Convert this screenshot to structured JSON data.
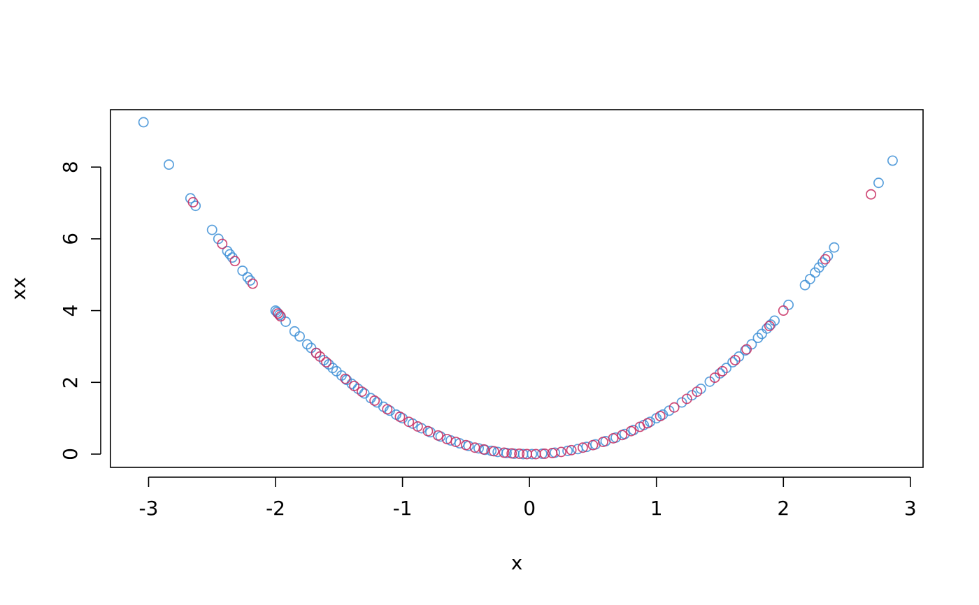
{
  "chart_data": {
    "type": "scatter",
    "title": "",
    "xlabel": "x",
    "ylabel": "xx",
    "xlim": [
      -3.3,
      3.1
    ],
    "ylim": [
      -0.37,
      9.6
    ],
    "xticks": [
      "-3",
      "-2",
      "-1",
      "0",
      "1",
      "2",
      "3"
    ],
    "yticks": [
      "0",
      "2",
      "4",
      "6",
      "8"
    ],
    "grid": false,
    "legend": "none",
    "colors": {
      "blue": "#3d8fd6",
      "red": "#c72a5f",
      "axis": "#000000"
    },
    "series": [
      {
        "color": "#3d8fd6",
        "x": [
          -3.04,
          -2.84,
          -2.67,
          -2.63,
          -2.5,
          -2.45,
          -2.38,
          -2.36,
          -2.34,
          -2.26,
          -2.22,
          -2.2,
          -2.0,
          -1.99,
          -1.97,
          -1.92,
          -1.85,
          -1.81,
          -1.75,
          -1.72,
          -1.68,
          -1.62,
          -1.58,
          -1.55,
          -1.52,
          -1.48,
          -1.44,
          -1.4,
          -1.35,
          -1.3,
          -1.25,
          -1.2,
          -1.15,
          -1.1,
          -1.05,
          -1.0,
          -0.92,
          -0.85,
          -0.78,
          -0.7,
          -0.62,
          -0.55,
          -0.48,
          -0.4,
          -0.35,
          -0.3,
          -0.25,
          -0.18,
          -0.12,
          -0.05,
          0.02,
          0.1,
          0.2,
          0.3,
          0.38,
          0.45,
          0.52,
          0.6,
          0.68,
          0.75,
          0.82,
          0.9,
          0.95,
          1.0,
          1.05,
          1.1,
          1.2,
          1.28,
          1.35,
          1.42,
          1.5,
          1.55,
          1.6,
          1.65,
          1.7,
          1.75,
          1.8,
          1.83,
          1.87,
          1.9,
          1.93,
          2.04,
          2.17,
          2.21,
          2.25,
          2.28,
          2.31,
          2.35,
          2.4,
          2.75,
          2.86
        ],
        "y": [
          9.25,
          8.07,
          7.13,
          6.92,
          6.25,
          6.0,
          5.66,
          5.57,
          5.48,
          5.11,
          4.93,
          4.84,
          4.0,
          3.96,
          3.88,
          3.69,
          3.42,
          3.28,
          3.06,
          2.96,
          2.82,
          2.62,
          2.5,
          2.4,
          2.31,
          2.19,
          2.07,
          1.96,
          1.82,
          1.69,
          1.56,
          1.44,
          1.32,
          1.21,
          1.1,
          1.0,
          0.85,
          0.72,
          0.61,
          0.49,
          0.38,
          0.3,
          0.23,
          0.16,
          0.12,
          0.09,
          0.06,
          0.03,
          0.01,
          0.0,
          0.0,
          0.01,
          0.04,
          0.09,
          0.14,
          0.2,
          0.27,
          0.36,
          0.46,
          0.56,
          0.67,
          0.81,
          0.9,
          1.0,
          1.1,
          1.21,
          1.44,
          1.64,
          1.82,
          2.02,
          2.25,
          2.4,
          2.56,
          2.72,
          2.89,
          3.06,
          3.24,
          3.35,
          3.5,
          3.61,
          3.72,
          4.16,
          4.71,
          4.88,
          5.06,
          5.2,
          5.34,
          5.52,
          5.76,
          7.56,
          8.18
        ]
      },
      {
        "color": "#c72a5f",
        "x": [
          -2.65,
          -2.42,
          -2.32,
          -2.18,
          -1.98,
          -1.96,
          -1.68,
          -1.65,
          -1.6,
          -1.45,
          -1.38,
          -1.32,
          -1.22,
          -1.12,
          -1.02,
          -0.95,
          -0.88,
          -0.8,
          -0.72,
          -0.65,
          -0.58,
          -0.5,
          -0.43,
          -0.36,
          -0.28,
          -0.2,
          -0.14,
          -0.08,
          -0.02,
          0.05,
          0.12,
          0.18,
          0.25,
          0.33,
          0.42,
          0.5,
          0.58,
          0.66,
          0.73,
          0.8,
          0.87,
          0.93,
          1.03,
          1.14,
          1.24,
          1.32,
          1.46,
          1.52,
          1.62,
          1.71,
          1.89,
          2.0,
          2.33,
          2.69
        ],
        "y": [
          7.02,
          5.86,
          5.38,
          4.75,
          3.92,
          3.84,
          2.82,
          2.72,
          2.56,
          2.1,
          1.9,
          1.74,
          1.49,
          1.25,
          1.04,
          0.9,
          0.77,
          0.64,
          0.52,
          0.42,
          0.34,
          0.25,
          0.18,
          0.13,
          0.08,
          0.04,
          0.02,
          0.01,
          0.0,
          0.0,
          0.01,
          0.03,
          0.06,
          0.11,
          0.18,
          0.25,
          0.34,
          0.44,
          0.53,
          0.64,
          0.76,
          0.86,
          1.06,
          1.3,
          1.54,
          1.74,
          2.13,
          2.31,
          2.62,
          2.92,
          3.57,
          4.0,
          5.43,
          7.24
        ]
      }
    ]
  }
}
